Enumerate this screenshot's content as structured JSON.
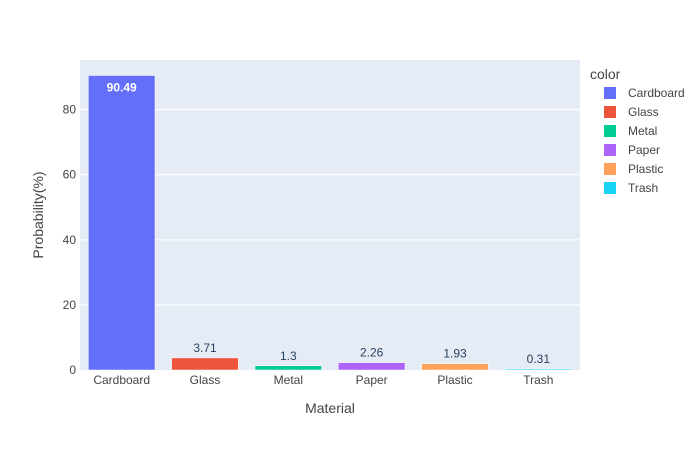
{
  "chart_data": {
    "type": "bar",
    "xlabel": "Material",
    "ylabel": "Probability(%)",
    "categories": [
      "Cardboard",
      "Glass",
      "Metal",
      "Paper",
      "Plastic",
      "Trash"
    ],
    "values": [
      90.49,
      3.71,
      1.3,
      2.26,
      1.93,
      0.31
    ],
    "data_labels": [
      "90.49",
      "3.71",
      "1.3",
      "2.26",
      "1.93",
      "0.31"
    ],
    "colors": [
      "#636efa",
      "#EF553B",
      "#00cc96",
      "#ab63fa",
      "#FFA15A",
      "#19d3f3"
    ],
    "ylim": [
      0,
      95.25
    ],
    "yticks": [
      0,
      20,
      40,
      60,
      80
    ],
    "grid": true,
    "plot_background": "#E5ECF6",
    "legend": {
      "title": "color",
      "placement": "top-right",
      "entries": [
        "Cardboard",
        "Glass",
        "Metal",
        "Paper",
        "Plastic",
        "Trash"
      ]
    }
  }
}
